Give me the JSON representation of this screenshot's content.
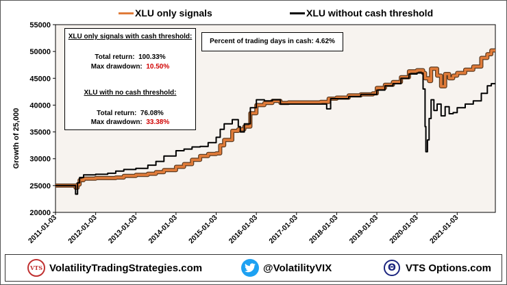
{
  "chart_data": {
    "type": "line",
    "ylabel": "Growth of 25,000",
    "xlabel": "",
    "ylim": [
      20000,
      55000
    ],
    "y_ticks": [
      "20000",
      "25000",
      "30000",
      "35000",
      "40000",
      "45000",
      "50000",
      "55000"
    ],
    "x_range": [
      2011.0,
      2021.95
    ],
    "x_ticks": [
      {
        "label": "2011-01-03",
        "x": 2011.0
      },
      {
        "label": "2012-01-03",
        "x": 2012.0
      },
      {
        "label": "2013-01-03",
        "x": 2013.0
      },
      {
        "label": "2014-01-03",
        "x": 2014.0
      },
      {
        "label": "2015-01-03",
        "x": 2015.0
      },
      {
        "label": "2016-01-03",
        "x": 2016.0
      },
      {
        "label": "2017-01-03",
        "x": 2017.0
      },
      {
        "label": "2018-01-03",
        "x": 2018.0
      },
      {
        "label": "2019-01-03",
        "x": 2019.0
      },
      {
        "label": "2020-01-03",
        "x": 2020.0
      },
      {
        "label": "2021-01-03",
        "x": 2021.0
      }
    ],
    "series": [
      {
        "name": "XLU only signals",
        "color": "#e07b39",
        "points": [
          [
            2011.0,
            25000
          ],
          [
            2011.45,
            25000
          ],
          [
            2011.5,
            24600
          ],
          [
            2011.55,
            25200
          ],
          [
            2011.6,
            26000
          ],
          [
            2011.7,
            26300
          ],
          [
            2012.0,
            26400
          ],
          [
            2012.3,
            26400
          ],
          [
            2012.5,
            26500
          ],
          [
            2012.7,
            26800
          ],
          [
            2013.0,
            27000
          ],
          [
            2013.3,
            27200
          ],
          [
            2013.5,
            27500
          ],
          [
            2013.7,
            27900
          ],
          [
            2014.0,
            28500
          ],
          [
            2014.2,
            29000
          ],
          [
            2014.4,
            29800
          ],
          [
            2014.6,
            30500
          ],
          [
            2014.8,
            30900
          ],
          [
            2015.0,
            31000
          ],
          [
            2015.1,
            32500
          ],
          [
            2015.2,
            33500
          ],
          [
            2015.4,
            35200
          ],
          [
            2015.55,
            35500
          ],
          [
            2015.7,
            36000
          ],
          [
            2015.85,
            38500
          ],
          [
            2016.0,
            40000
          ],
          [
            2016.2,
            40400
          ],
          [
            2016.4,
            40800
          ],
          [
            2016.6,
            40400
          ],
          [
            2016.8,
            40500
          ],
          [
            2017.0,
            40500
          ],
          [
            2017.3,
            40500
          ],
          [
            2017.6,
            40600
          ],
          [
            2017.8,
            41200
          ],
          [
            2018.0,
            41400
          ],
          [
            2018.3,
            41800
          ],
          [
            2018.6,
            42000
          ],
          [
            2018.9,
            42200
          ],
          [
            2019.0,
            43200
          ],
          [
            2019.2,
            43800
          ],
          [
            2019.4,
            44300
          ],
          [
            2019.6,
            45200
          ],
          [
            2019.8,
            46300
          ],
          [
            2020.0,
            46500
          ],
          [
            2020.15,
            46000
          ],
          [
            2020.2,
            45000
          ],
          [
            2020.3,
            44500
          ],
          [
            2020.35,
            46800
          ],
          [
            2020.5,
            45500
          ],
          [
            2020.6,
            43500
          ],
          [
            2020.7,
            45800
          ],
          [
            2020.8,
            45000
          ],
          [
            2020.9,
            45500
          ],
          [
            2021.0,
            46000
          ],
          [
            2021.2,
            46600
          ],
          [
            2021.4,
            47200
          ],
          [
            2021.6,
            48800
          ],
          [
            2021.75,
            49500
          ],
          [
            2021.85,
            50200
          ],
          [
            2021.95,
            50200
          ]
        ]
      },
      {
        "name": "XLU without cash threshold",
        "color": "#000000",
        "points": [
          [
            2011.0,
            25000
          ],
          [
            2011.45,
            25000
          ],
          [
            2011.5,
            23400
          ],
          [
            2011.55,
            25500
          ],
          [
            2011.6,
            26500
          ],
          [
            2011.7,
            27000
          ],
          [
            2012.0,
            27100
          ],
          [
            2012.3,
            27300
          ],
          [
            2012.5,
            27700
          ],
          [
            2012.7,
            28000
          ],
          [
            2013.0,
            28200
          ],
          [
            2013.3,
            28800
          ],
          [
            2013.5,
            29500
          ],
          [
            2013.7,
            30500
          ],
          [
            2014.0,
            31500
          ],
          [
            2014.2,
            31800
          ],
          [
            2014.4,
            32200
          ],
          [
            2014.6,
            32300
          ],
          [
            2014.8,
            33000
          ],
          [
            2015.0,
            34000
          ],
          [
            2015.1,
            35500
          ],
          [
            2015.2,
            36500
          ],
          [
            2015.4,
            37300
          ],
          [
            2015.55,
            36000
          ],
          [
            2015.6,
            35000
          ],
          [
            2015.7,
            36500
          ],
          [
            2015.85,
            39500
          ],
          [
            2016.0,
            41000
          ],
          [
            2016.2,
            40800
          ],
          [
            2016.4,
            41000
          ],
          [
            2016.6,
            40200
          ],
          [
            2016.8,
            40200
          ],
          [
            2017.0,
            40200
          ],
          [
            2017.3,
            40200
          ],
          [
            2017.6,
            40200
          ],
          [
            2017.75,
            39300
          ],
          [
            2017.85,
            41200
          ],
          [
            2018.0,
            41200
          ],
          [
            2018.3,
            41600
          ],
          [
            2018.6,
            42000
          ],
          [
            2018.9,
            42000
          ],
          [
            2019.0,
            42800
          ],
          [
            2019.2,
            43600
          ],
          [
            2019.4,
            44000
          ],
          [
            2019.6,
            45000
          ],
          [
            2019.8,
            45800
          ],
          [
            2020.0,
            46000
          ],
          [
            2020.1,
            46000
          ],
          [
            2020.15,
            43000
          ],
          [
            2020.2,
            36000
          ],
          [
            2020.22,
            31300
          ],
          [
            2020.26,
            33500
          ],
          [
            2020.3,
            37500
          ],
          [
            2020.35,
            41000
          ],
          [
            2020.42,
            39000
          ],
          [
            2020.5,
            40200
          ],
          [
            2020.6,
            38000
          ],
          [
            2020.7,
            39700
          ],
          [
            2020.8,
            38400
          ],
          [
            2020.9,
            38600
          ],
          [
            2021.0,
            39500
          ],
          [
            2021.2,
            40200
          ],
          [
            2021.4,
            40800
          ],
          [
            2021.6,
            42200
          ],
          [
            2021.75,
            43600
          ],
          [
            2021.85,
            44000
          ],
          [
            2021.95,
            44000
          ]
        ]
      }
    ],
    "annotations": {
      "stats_header_1": "XLU only signals with cash threshold:",
      "total_return_label": "Total return:",
      "max_drawdown_label": "Max drawdown:",
      "total_return_1": "100.33%",
      "max_drawdown_1": "10.50%",
      "stats_header_2": "XLU with no cash threshold:",
      "total_return_2": "76.08%",
      "max_drawdown_2": "33.38%",
      "cash_days": "Percent of trading days in cash:  4.62%"
    }
  },
  "footer": {
    "vts_logo_text": "VTS",
    "site": "VolatilityTradingStrategies.com",
    "twitter": "@VolatilityVIX",
    "options_logo_text": "Θ",
    "options": "VTS Options.com"
  },
  "colors": {
    "plot_background": "#f7f3ef",
    "signals_line": "#e07b39",
    "no_cash_line": "#000000",
    "highlight": "#d00000"
  }
}
